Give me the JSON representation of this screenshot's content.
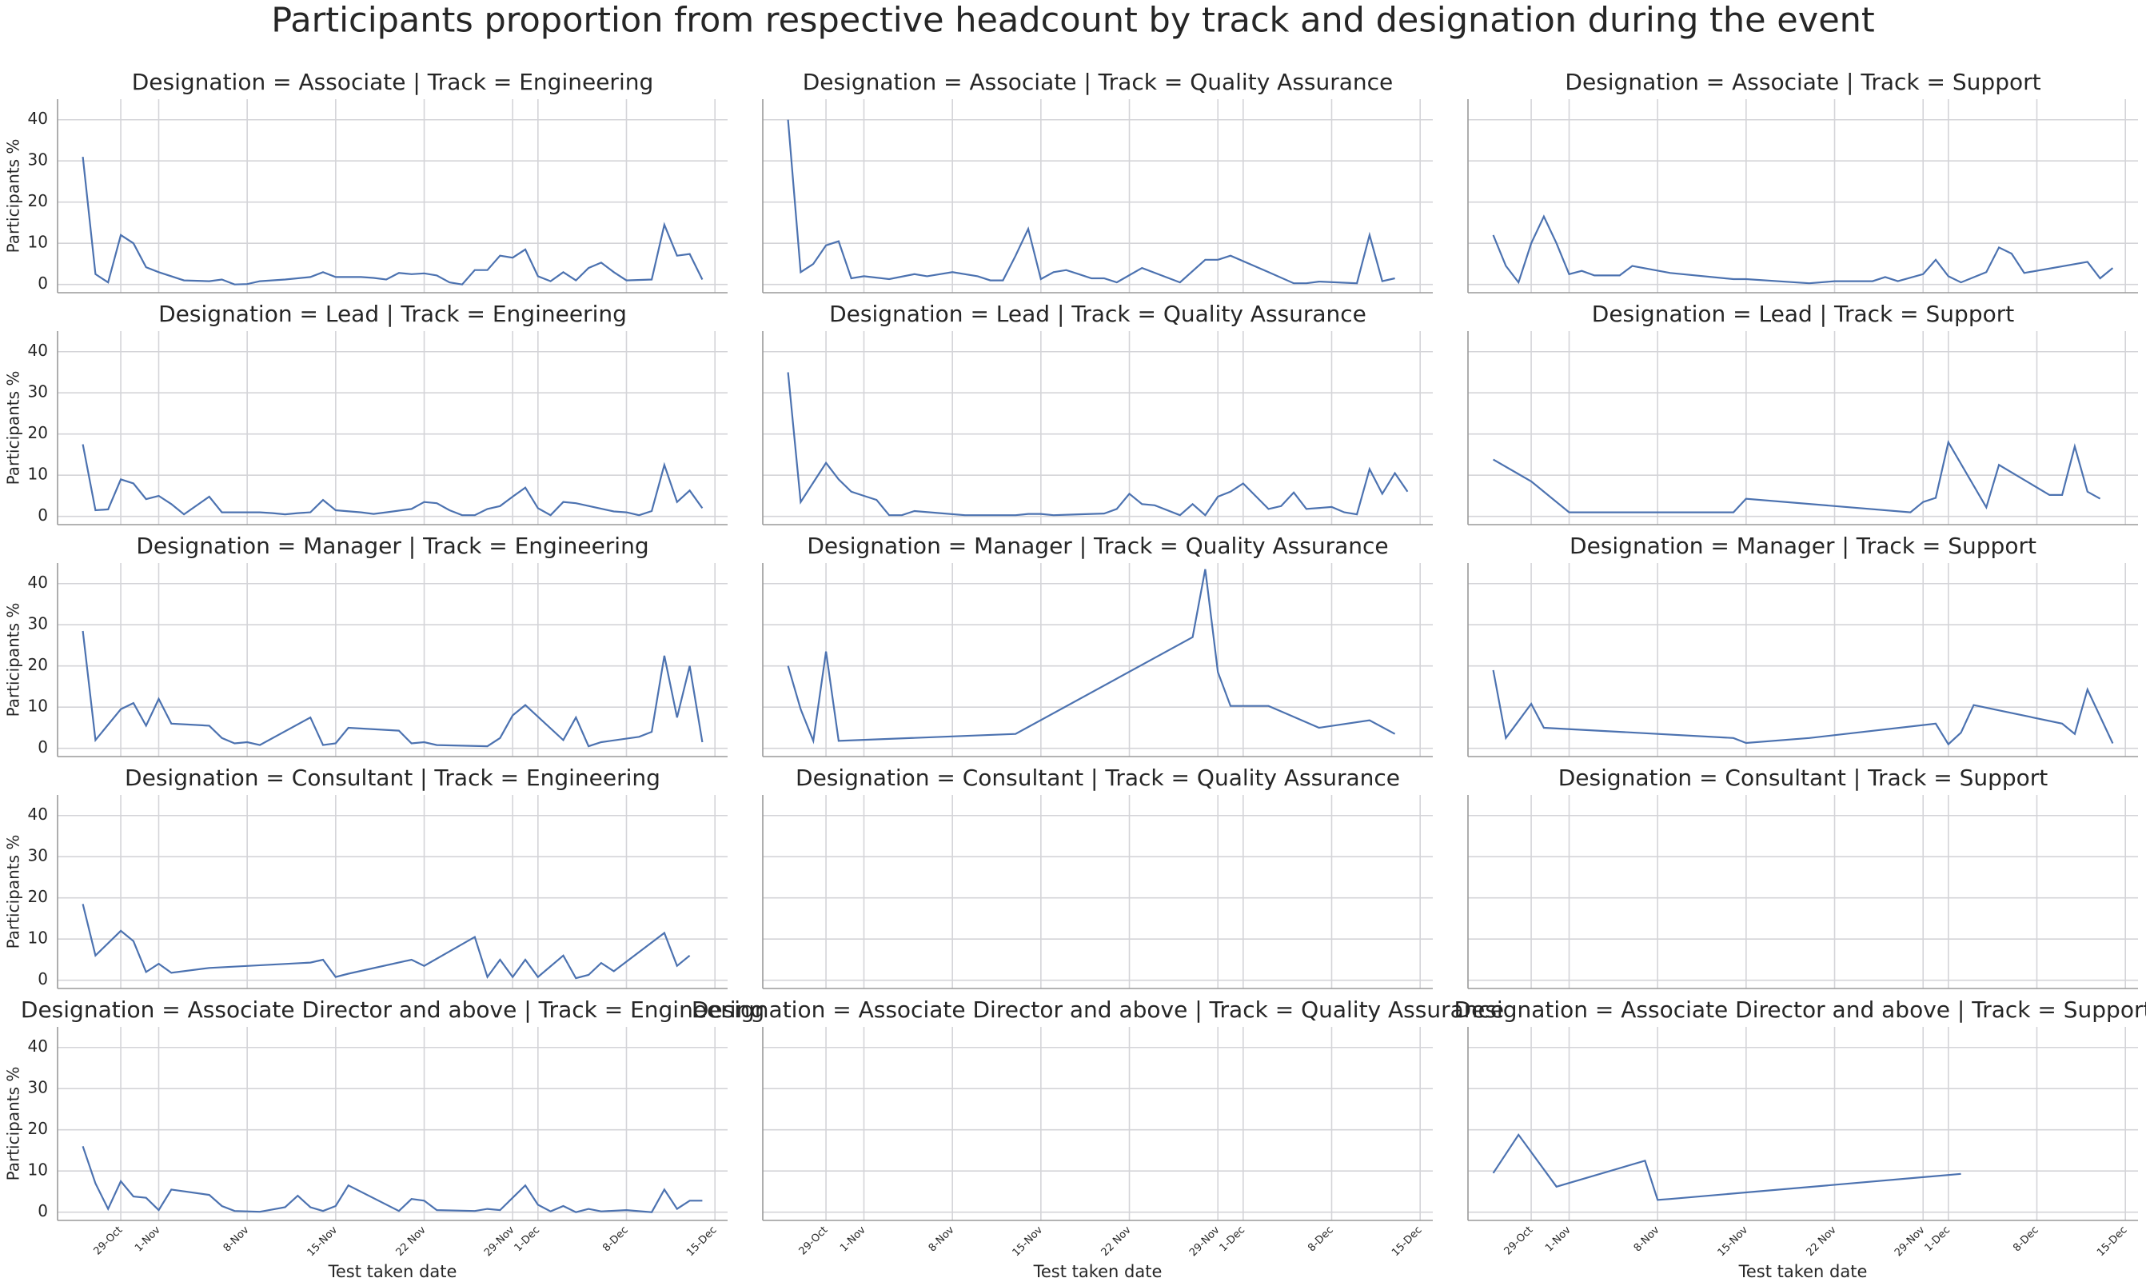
{
  "title": "Participants proportion from respective headcount by track and designation during the event",
  "x_axis": {
    "label": "Test taken date",
    "lim": [
      "24-Oct",
      "16-Dec"
    ],
    "ticks": [
      "29-Oct",
      "1-Nov",
      "8-Nov",
      "15-Nov",
      "22 Nov",
      "29-Nov",
      "1-Dec",
      "8-Dec",
      "15-Dec"
    ]
  },
  "y_axis": {
    "label": "Participants %",
    "lim": [
      -2,
      45
    ],
    "ticks": [
      0,
      10,
      20,
      30,
      40
    ]
  },
  "chart_data": [
    {
      "type": "line",
      "color": "#4c72b0",
      "title": "Designation = Associate | Track = Engineering",
      "x": [
        "26-Oct",
        "27-Oct",
        "28-Oct",
        "29-Oct",
        "30-Oct",
        "31-Oct",
        "1-Nov",
        "3-Nov",
        "5-Nov",
        "6-Nov",
        "7-Nov",
        "8-Nov",
        "9-Nov",
        "11-Nov",
        "13-Nov",
        "14-Nov",
        "15-Nov",
        "17-Nov",
        "18-Nov",
        "19-Nov",
        "20-Nov",
        "21-Nov",
        "22-Nov",
        "23-Nov",
        "24-Nov",
        "25-Nov",
        "26-Nov",
        "27-Nov",
        "28-Nov",
        "29-Nov",
        "30-Nov",
        "1-Dec",
        "2-Dec",
        "3-Dec",
        "4-Dec",
        "5-Dec",
        "6-Dec",
        "7-Dec",
        "8-Dec",
        "10-Dec",
        "11-Dec",
        "12-Dec",
        "13-Dec",
        "14-Dec"
      ],
      "values": [
        31,
        2.5,
        0.5,
        12,
        10,
        4.2,
        3,
        1,
        0.8,
        1.2,
        0,
        0.1,
        0.8,
        1.2,
        1.8,
        3,
        1.8,
        1.8,
        1.6,
        1.2,
        2.8,
        2.5,
        2.7,
        2.2,
        0.5,
        0,
        3.5,
        3.5,
        7,
        6.5,
        8.5,
        2,
        0.8,
        3,
        1,
        4,
        5.3,
        3,
        1,
        1.2,
        14.5,
        7,
        7.4,
        1.2
      ]
    },
    {
      "type": "line",
      "color": "#4c72b0",
      "title": "Designation = Associate | Track = Quality Assurance",
      "x": [
        "26-Oct",
        "27-Oct",
        "28-Oct",
        "29-Oct",
        "30-Oct",
        "31-Oct",
        "1-Nov",
        "3-Nov",
        "5-Nov",
        "6-Nov",
        "8-Nov",
        "10-Nov",
        "11-Nov",
        "12-Nov",
        "13-Nov",
        "14-Nov",
        "15-Nov",
        "16-Nov",
        "17-Nov",
        "18-Nov",
        "19-Nov",
        "20-Nov",
        "21-Nov",
        "23-Nov",
        "26-Nov",
        "28-Nov",
        "29-Nov",
        "30-Nov",
        "3-Dec",
        "5-Dec",
        "6-Dec",
        "7-Dec",
        "10-Dec",
        "11-Dec",
        "12-Dec",
        "13-Dec"
      ],
      "values": [
        40,
        3,
        5,
        9.5,
        10.5,
        1.5,
        2,
        1.3,
        2.5,
        2,
        3,
        2,
        1,
        1,
        7,
        13.5,
        1.3,
        3,
        3.5,
        2.5,
        1.5,
        1.5,
        0.5,
        4,
        0.5,
        6,
        6,
        7,
        3,
        0.3,
        0.3,
        0.7,
        0.3,
        12,
        0.8,
        1.5
      ]
    },
    {
      "type": "line",
      "color": "#4c72b0",
      "title": "Designation = Associate | Track = Support",
      "x": [
        "26-Oct",
        "27-Oct",
        "28-Oct",
        "29-Oct",
        "30-Oct",
        "31-Oct",
        "1-Nov",
        "2-Nov",
        "3-Nov",
        "5-Nov",
        "6-Nov",
        "9-Nov",
        "14-Nov",
        "15-Nov",
        "20-Nov",
        "22-Nov",
        "25-Nov",
        "26-Nov",
        "27-Nov",
        "29-Nov",
        "30-Nov",
        "1-Dec",
        "2-Dec",
        "4-Dec",
        "5-Dec",
        "6-Dec",
        "7-Dec",
        "12-Dec",
        "13-Dec",
        "14-Dec"
      ],
      "values": [
        12,
        4.5,
        0.5,
        10,
        16.5,
        10,
        2.5,
        3.3,
        2.2,
        2.2,
        4.5,
        2.8,
        1.3,
        1.3,
        0.3,
        0.8,
        0.8,
        1.8,
        0.8,
        2.5,
        6,
        2,
        0.5,
        3,
        9,
        7.5,
        2.8,
        5.5,
        1.5,
        4
      ]
    },
    {
      "type": "line",
      "color": "#4c72b0",
      "title": "Designation = Lead | Track = Engineering",
      "x": [
        "26-Oct",
        "27-Oct",
        "28-Oct",
        "29-Oct",
        "30-Oct",
        "31-Oct",
        "1-Nov",
        "2-Nov",
        "3-Nov",
        "5-Nov",
        "6-Nov",
        "9-Nov",
        "10-Nov",
        "11-Nov",
        "12-Nov",
        "13-Nov",
        "14-Nov",
        "15-Nov",
        "17-Nov",
        "18-Nov",
        "19-Nov",
        "21-Nov",
        "22-Nov",
        "23-Nov",
        "24-Nov",
        "25-Nov",
        "26-Nov",
        "27-Nov",
        "28-Nov",
        "29-Nov",
        "30-Nov",
        "1-Dec",
        "2-Dec",
        "3-Dec",
        "4-Dec",
        "7-Dec",
        "8-Dec",
        "9-Dec",
        "10-Dec",
        "11-Dec",
        "12-Dec",
        "13-Dec",
        "14-Dec"
      ],
      "values": [
        17.5,
        1.5,
        1.7,
        9,
        8,
        4.2,
        5,
        3,
        0.5,
        4.8,
        1,
        1,
        0.8,
        0.5,
        0.8,
        1,
        4,
        1.5,
        1,
        0.6,
        1,
        1.8,
        3.5,
        3.2,
        1.5,
        0.3,
        0.3,
        1.8,
        2.5,
        4.8,
        7,
        2,
        0.3,
        3.5,
        3.2,
        1.2,
        1,
        0.3,
        1.3,
        12.5,
        3.5,
        6.3,
        2
      ]
    },
    {
      "type": "line",
      "color": "#4c72b0",
      "title": "Designation = Lead | Track = Quality Assurance",
      "x": [
        "26-Oct",
        "27-Oct",
        "29-Oct",
        "30-Oct",
        "31-Oct",
        "1-Nov",
        "2-Nov",
        "3-Nov",
        "4-Nov",
        "5-Nov",
        "7-Nov",
        "9-Nov",
        "11-Nov",
        "13-Nov",
        "14-Nov",
        "15-Nov",
        "16-Nov",
        "18-Nov",
        "20-Nov",
        "21-Nov",
        "22-Nov",
        "23-Nov",
        "24-Nov",
        "26-Nov",
        "27-Nov",
        "28-Nov",
        "29-Nov",
        "30-Nov",
        "1-Dec",
        "3-Dec",
        "4-Dec",
        "5-Dec",
        "6-Dec",
        "8-Dec",
        "9-Dec",
        "10-Dec",
        "11-Dec",
        "12-Dec",
        "13-Dec",
        "14-Dec"
      ],
      "values": [
        35,
        3.5,
        13,
        9,
        6,
        5,
        4,
        0.3,
        0.3,
        1.3,
        0.8,
        0.3,
        0.3,
        0.3,
        0.6,
        0.6,
        0.3,
        0.5,
        0.7,
        1.8,
        5.5,
        3,
        2.7,
        0.3,
        3,
        0.3,
        4.8,
        6,
        8,
        1.8,
        2.5,
        5.8,
        1.8,
        2.3,
        1,
        0.5,
        11.5,
        5.5,
        10.5,
        6
      ]
    },
    {
      "type": "line",
      "color": "#4c72b0",
      "title": "Designation = Lead | Track = Support",
      "x": [
        "26-Oct",
        "29-Oct",
        "1-Nov",
        "14-Nov",
        "15-Nov",
        "28-Nov",
        "29-Nov",
        "30-Nov",
        "1-Dec",
        "4-Dec",
        "5-Dec",
        "9-Dec",
        "10-Dec",
        "11-Dec",
        "12-Dec",
        "13-Dec"
      ],
      "values": [
        13.8,
        8.5,
        1,
        1,
        4.3,
        1,
        3.5,
        4.5,
        18,
        2.2,
        12.5,
        5.2,
        5.2,
        17,
        6,
        4.3
      ]
    },
    {
      "type": "line",
      "color": "#4c72b0",
      "title": "Designation = Manager | Track = Engineering",
      "x": [
        "26-Oct",
        "27-Oct",
        "29-Oct",
        "30-Oct",
        "31-Oct",
        "1-Nov",
        "2-Nov",
        "5-Nov",
        "6-Nov",
        "7-Nov",
        "8-Nov",
        "9-Nov",
        "13-Nov",
        "14-Nov",
        "15-Nov",
        "16-Nov",
        "20-Nov",
        "21-Nov",
        "22-Nov",
        "23-Nov",
        "27-Nov",
        "28-Nov",
        "29-Nov",
        "30-Nov",
        "3-Dec",
        "4-Dec",
        "5-Dec",
        "6-Dec",
        "9-Dec",
        "10-Dec",
        "11-Dec",
        "12-Dec",
        "13-Dec",
        "14-Dec"
      ],
      "values": [
        28.5,
        2,
        9.5,
        11,
        5.5,
        12,
        6,
        5.5,
        2.5,
        1.2,
        1.5,
        0.8,
        7.5,
        0.8,
        1.2,
        5,
        4.3,
        1.2,
        1.5,
        0.8,
        0.5,
        2.5,
        8,
        10.5,
        2,
        7.5,
        0.5,
        1.5,
        2.8,
        4,
        22.5,
        7.5,
        20,
        1.5
      ]
    },
    {
      "type": "line",
      "color": "#4c72b0",
      "title": "Designation = Manager | Track = Quality Assurance",
      "x": [
        "26-Oct",
        "27-Oct",
        "28-Oct",
        "29-Oct",
        "30-Oct",
        "13-Nov",
        "27-Nov",
        "28-Nov",
        "29-Nov",
        "30-Nov",
        "3-Dec",
        "7-Dec",
        "11-Dec",
        "13-Dec"
      ],
      "values": [
        20,
        9.5,
        1.8,
        23.5,
        1.8,
        3.5,
        27,
        43.5,
        18.5,
        10.3,
        10.3,
        5,
        6.8,
        3.5
      ]
    },
    {
      "type": "line",
      "color": "#4c72b0",
      "title": "Designation = Manager | Track = Support",
      "x": [
        "26-Oct",
        "27-Oct",
        "29-Oct",
        "30-Oct",
        "14-Nov",
        "15-Nov",
        "20-Nov",
        "30-Nov",
        "1-Dec",
        "2-Dec",
        "3-Dec",
        "10-Dec",
        "11-Dec",
        "12-Dec",
        "14-Dec"
      ],
      "values": [
        19,
        2.5,
        10.8,
        5,
        2.5,
        1.3,
        2.5,
        6,
        1,
        3.8,
        10.5,
        6,
        3.5,
        14.3,
        1.2
      ]
    },
    {
      "type": "line",
      "color": "#4c72b0",
      "title": "Designation = Consultant | Track = Engineering",
      "x": [
        "26-Oct",
        "27-Oct",
        "29-Oct",
        "30-Oct",
        "31-Oct",
        "1-Nov",
        "2-Nov",
        "5-Nov",
        "13-Nov",
        "14-Nov",
        "15-Nov",
        "16-Nov",
        "21-Nov",
        "22-Nov",
        "26-Nov",
        "27-Nov",
        "28-Nov",
        "29-Nov",
        "30-Nov",
        "1-Dec",
        "3-Dec",
        "4-Dec",
        "5-Dec",
        "6-Dec",
        "7-Dec",
        "11-Dec",
        "12-Dec",
        "13-Dec"
      ],
      "values": [
        18.5,
        6,
        12,
        9.5,
        2,
        4,
        1.8,
        3,
        4.3,
        5,
        0.8,
        1.6,
        5,
        3.5,
        10.5,
        0.8,
        5,
        0.8,
        5,
        0.8,
        6,
        0.5,
        1.3,
        4.2,
        2.2,
        11.5,
        3.5,
        6
      ]
    },
    {
      "type": "line",
      "color": "#4c72b0",
      "title": "Designation = Consultant | Track = Quality Assurance",
      "x": [],
      "values": []
    },
    {
      "type": "line",
      "color": "#4c72b0",
      "title": "Designation = Consultant | Track = Support",
      "x": [],
      "values": []
    },
    {
      "type": "line",
      "color": "#4c72b0",
      "title": "Designation = Associate Director and above | Track = Engineering",
      "x": [
        "26-Oct",
        "27-Oct",
        "28-Oct",
        "29-Oct",
        "30-Oct",
        "31-Oct",
        "1-Nov",
        "2-Nov",
        "5-Nov",
        "6-Nov",
        "7-Nov",
        "9-Nov",
        "11-Nov",
        "12-Nov",
        "13-Nov",
        "14-Nov",
        "15-Nov",
        "16-Nov",
        "20-Nov",
        "21-Nov",
        "22-Nov",
        "23-Nov",
        "26-Nov",
        "27-Nov",
        "28-Nov",
        "30-Nov",
        "1-Dec",
        "2-Dec",
        "3-Dec",
        "4-Dec",
        "5-Dec",
        "6-Dec",
        "8-Dec",
        "10-Dec",
        "11-Dec",
        "12-Dec",
        "13-Dec",
        "14-Dec"
      ],
      "values": [
        16,
        7,
        0.8,
        7.5,
        3.8,
        3.5,
        0.5,
        5.5,
        4.2,
        1.5,
        0.3,
        0.1,
        1.2,
        4,
        1.2,
        0.3,
        1.5,
        6.5,
        0.3,
        3.2,
        2.8,
        0.5,
        0.3,
        0.8,
        0.5,
        6.5,
        1.8,
        0.2,
        1.5,
        0,
        0.8,
        0.2,
        0.5,
        0,
        5.5,
        0.8,
        2.8,
        2.8
      ]
    },
    {
      "type": "line",
      "color": "#4c72b0",
      "title": "Designation = Associate Director and above | Track = Quality Assurance",
      "x": [],
      "values": []
    },
    {
      "type": "line",
      "color": "#4c72b0",
      "title": "Designation = Associate Director and above | Track = Support",
      "x": [
        "26-Oct",
        "28-Oct",
        "31-Oct",
        "7-Nov",
        "8-Nov",
        "9-Nov",
        "2-Dec"
      ],
      "values": [
        9.5,
        18.8,
        6.2,
        12.5,
        3,
        3.2,
        9.3
      ]
    }
  ]
}
